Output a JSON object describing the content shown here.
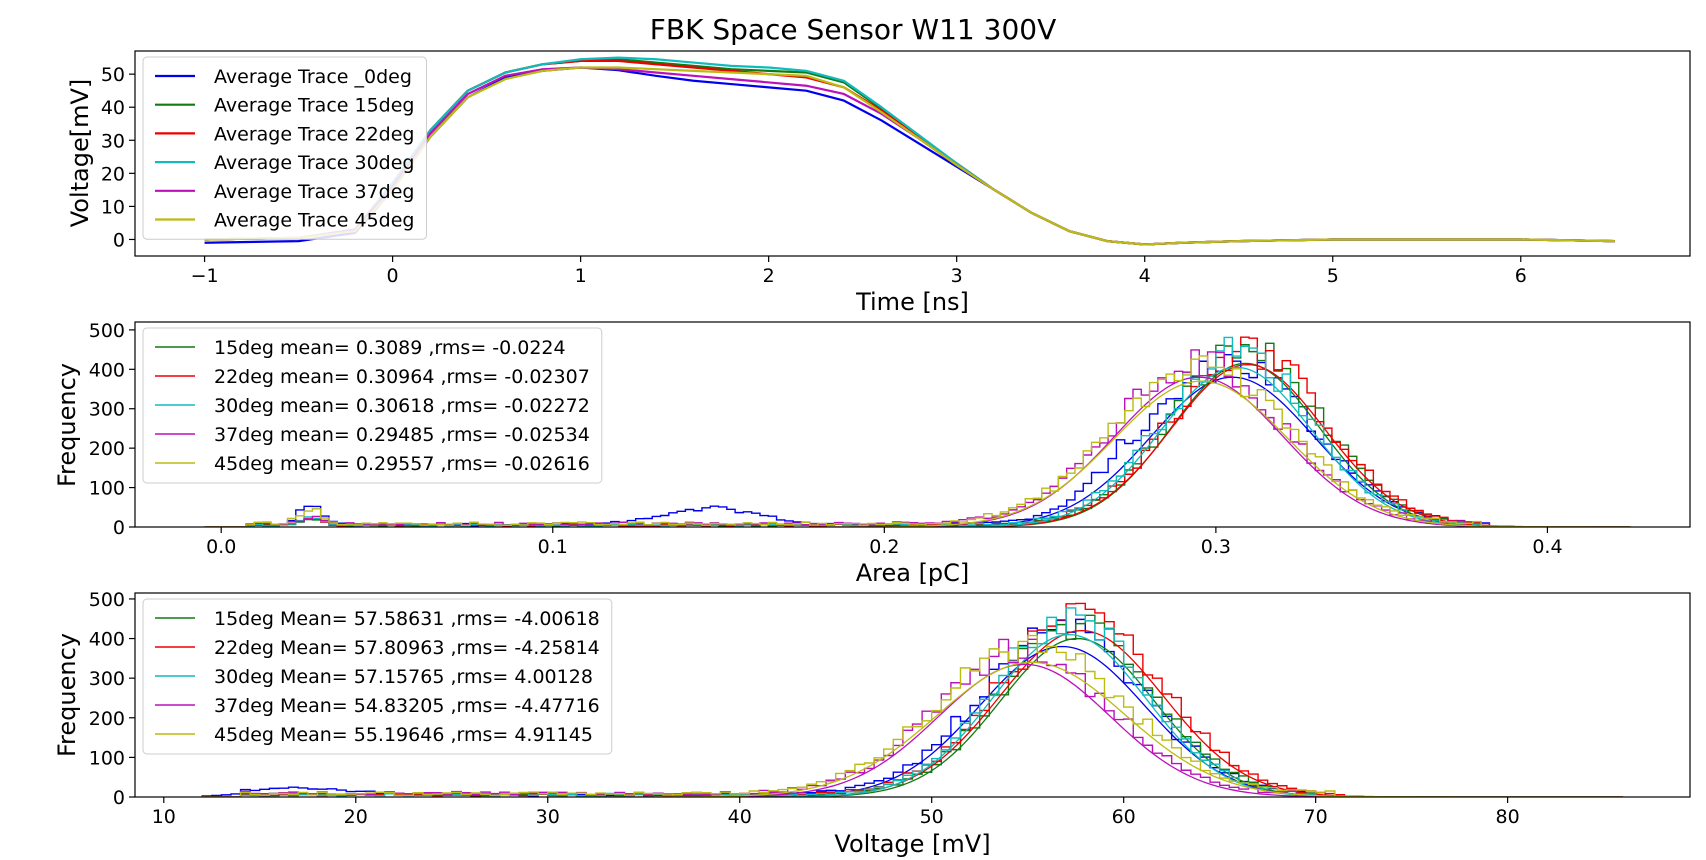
{
  "title": "FBK Space Sensor W11 300V",
  "colors": {
    "_0deg": "#0000ee",
    "15deg": "#127a12",
    "22deg": "#ee0000",
    "30deg": "#11bbbb",
    "37deg": "#bb11bb",
    "45deg": "#bbbb11"
  },
  "chart_data": [
    {
      "type": "line",
      "xlabel": "Time [ns]",
      "ylabel": "Voltage[mV]",
      "xlim": [
        -1.37,
        6.9
      ],
      "ylim": [
        -5,
        57
      ],
      "xticks": [
        -1,
        0,
        1,
        2,
        3,
        4,
        5,
        6
      ],
      "yticks": [
        0,
        10,
        20,
        30,
        40,
        50
      ],
      "legend_position": "upper-left",
      "x": [
        -1.0,
        -0.5,
        -0.2,
        0.0,
        0.2,
        0.4,
        0.6,
        0.8,
        1.0,
        1.2,
        1.4,
        1.6,
        1.8,
        2.0,
        2.2,
        2.4,
        2.6,
        2.8,
        3.0,
        3.2,
        3.4,
        3.6,
        3.8,
        4.0,
        4.2,
        4.5,
        5.0,
        5.5,
        6.0,
        6.5
      ],
      "series": [
        {
          "name": "Average Trace _0deg",
          "color_key": "_0deg",
          "values": [
            -1,
            -0.5,
            2,
            15,
            31,
            43,
            49,
            51,
            52,
            51.2,
            49.5,
            48,
            47,
            46,
            45,
            42,
            36,
            29,
            22,
            15,
            8,
            2.5,
            -0.5,
            -1.5,
            -1,
            -0.5,
            0,
            0,
            0,
            -0.5
          ]
        },
        {
          "name": "Average Trace 15deg",
          "color_key": "15deg",
          "values": [
            0,
            0.5,
            3,
            17,
            33,
            45,
            50.5,
            53,
            54,
            54.5,
            53.5,
            52.5,
            51.5,
            51,
            50.5,
            47.5,
            39.5,
            31,
            23,
            15,
            8,
            2.5,
            -0.5,
            -1.5,
            -1,
            -0.5,
            0,
            0,
            0,
            -0.5
          ]
        },
        {
          "name": "Average Trace 22deg",
          "color_key": "22deg",
          "values": [
            0,
            0.5,
            3,
            17,
            33,
            45,
            50.5,
            53,
            54,
            54,
            53,
            52,
            51,
            50,
            49,
            46,
            39,
            31,
            23,
            15,
            8,
            2.5,
            -0.5,
            -1.5,
            -1,
            -0.5,
            0,
            0,
            0,
            -0.5
          ]
        },
        {
          "name": "Average Trace 30deg",
          "color_key": "30deg",
          "values": [
            0,
            0.5,
            3,
            17,
            33,
            45,
            50.5,
            53,
            54.5,
            55,
            54.5,
            53.5,
            52.5,
            52,
            51,
            48,
            40,
            31.5,
            23,
            15,
            8,
            2.5,
            -0.5,
            -1.5,
            -1,
            -0.5,
            0,
            0,
            0,
            -0.5
          ]
        },
        {
          "name": "Average Trace 37deg",
          "color_key": "37deg",
          "values": [
            0,
            0.5,
            3,
            16,
            32,
            44,
            49.5,
            51.5,
            52,
            51.5,
            50.5,
            49.5,
            48.5,
            47.5,
            46.5,
            44,
            38,
            30.5,
            22.5,
            15,
            8,
            2.5,
            -0.5,
            -1.5,
            -1,
            -0.5,
            0,
            0,
            0,
            -0.5
          ]
        },
        {
          "name": "Average Trace 45deg",
          "color_key": "45deg",
          "values": [
            0,
            0.5,
            2.5,
            15,
            31,
            43,
            48.5,
            51,
            52,
            52,
            51.5,
            51,
            50.5,
            50,
            49.5,
            46,
            38.5,
            30.5,
            22.5,
            15,
            8,
            2.5,
            -0.5,
            -1.5,
            -1,
            -0.5,
            0,
            0,
            0,
            -0.5
          ]
        }
      ]
    },
    {
      "type": "histogram",
      "xlabel": "Area [pC]",
      "ylabel": "Frequency",
      "xlim": [
        -0.026,
        0.443
      ],
      "ylim": [
        0,
        520
      ],
      "xticks": [
        0.0,
        0.1,
        0.2,
        0.3,
        0.4
      ],
      "xtick_labels": [
        "0.0",
        "0.1",
        "0.2",
        "0.3",
        "0.4"
      ],
      "yticks": [
        0,
        100,
        200,
        300,
        400,
        500
      ],
      "bin_range": [
        -0.005,
        0.425
      ],
      "bins": 172,
      "legend_position": "upper-left",
      "series": [
        {
          "name": "",
          "color_key": "_0deg",
          "total": 23000,
          "mean": 0.305,
          "sigma": 0.0245,
          "peak": 380,
          "low_bumps": [
            [
              0.027,
              0.0035,
              50
            ],
            [
              0.148,
              0.014,
              42
            ],
            [
              0.27,
              0.007,
              35
            ]
          ],
          "background": 6
        },
        {
          "name": "15deg mean= 0.3089 ,rms= -0.0224",
          "color_key": "15deg",
          "total": 23000,
          "mean": 0.3089,
          "sigma": 0.0224,
          "peak": 415,
          "low_bumps": [
            [
              0.027,
              0.003,
              15
            ]
          ],
          "background": 5
        },
        {
          "name": "22deg mean= 0.30964 ,rms= -0.02307",
          "color_key": "22deg",
          "total": 24000,
          "mean": 0.30964,
          "sigma": 0.02307,
          "peak": 412,
          "low_bumps": [
            [
              0.027,
              0.003,
              15
            ]
          ],
          "background": 5
        },
        {
          "name": "30deg mean= 0.30618 ,rms= -0.02272",
          "color_key": "30deg",
          "total": 24000,
          "mean": 0.30618,
          "sigma": 0.02272,
          "peak": 405,
          "low_bumps": [
            [
              0.027,
              0.003,
              20
            ]
          ],
          "background": 5
        },
        {
          "name": "37deg mean= 0.29485 ,rms= -0.02534",
          "color_key": "37deg",
          "total": 24000,
          "mean": 0.29485,
          "sigma": 0.02534,
          "peak": 380,
          "low_bumps": [
            [
              0.027,
              0.003,
              15
            ]
          ],
          "background": 8
        },
        {
          "name": "45deg mean= 0.29557 ,rms= -0.02616",
          "color_key": "45deg",
          "total": 24000,
          "mean": 0.29557,
          "sigma": 0.02616,
          "peak": 370,
          "low_bumps": [
            [
              0.027,
              0.0035,
              35
            ]
          ],
          "background": 8
        }
      ]
    },
    {
      "type": "histogram",
      "xlabel": "Voltage [mV]",
      "ylabel": "Frequency",
      "xlim": [
        8.5,
        89.5
      ],
      "ylim": [
        0,
        515
      ],
      "xticks": [
        10,
        20,
        30,
        40,
        50,
        60,
        70,
        80
      ],
      "xtick_labels": [
        "10",
        "20",
        "30",
        "40",
        "50",
        "60",
        "70",
        "80"
      ],
      "yticks": [
        0,
        100,
        200,
        300,
        400,
        500
      ],
      "bin_range": [
        12,
        86
      ],
      "bins": 148,
      "legend_position": "upper-left",
      "series": [
        {
          "name": "",
          "color_key": "_0deg",
          "total": 4600,
          "mean": 56.8,
          "sigma": 4.3,
          "peak": 380,
          "low_bumps": [
            [
              17,
              2.5,
              18
            ]
          ],
          "background": 6
        },
        {
          "name": "15deg Mean= 57.58631 ,rms= -4.00618",
          "color_key": "15deg",
          "total": 4700,
          "mean": 57.58631,
          "sigma": 4.00618,
          "peak": 400,
          "low_bumps": [],
          "background": 6
        },
        {
          "name": "22deg Mean= 57.80963 ,rms= -4.25814",
          "color_key": "22deg",
          "total": 4700,
          "mean": 57.80963,
          "sigma": 4.25814,
          "peak": 420,
          "low_bumps": [],
          "background": 6
        },
        {
          "name": "30deg Mean= 57.15765 ,rms= 4.00128",
          "color_key": "30deg",
          "total": 4700,
          "mean": 57.15765,
          "sigma": 4.00128,
          "peak": 410,
          "low_bumps": [],
          "background": 6
        },
        {
          "name": "37deg Mean= 54.83205 ,rms= -4.47716",
          "color_key": "37deg",
          "total": 4600,
          "mean": 54.83205,
          "sigma": 4.47716,
          "peak": 335,
          "low_bumps": [],
          "background": 9
        },
        {
          "name": "45deg Mean= 55.19646 ,rms= 4.91145",
          "color_key": "45deg",
          "total": 4600,
          "mean": 55.19646,
          "sigma": 4.91145,
          "peak": 340,
          "low_bumps": [],
          "background": 8
        }
      ]
    }
  ]
}
